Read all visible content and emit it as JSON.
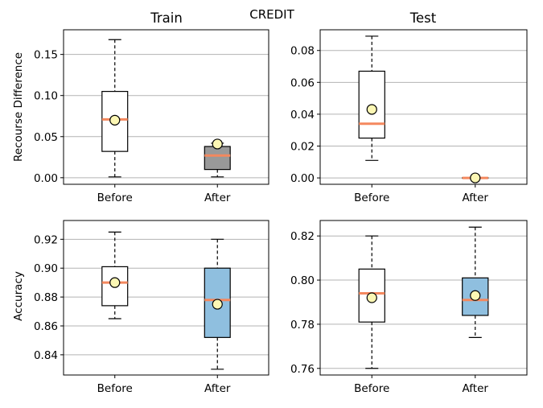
{
  "figure": {
    "suptitle": "CREDIT"
  },
  "chart_data": [
    {
      "type": "box",
      "title": "Train",
      "ylabel": "Recourse Difference",
      "categories": [
        "Before",
        "After"
      ],
      "ylim": [
        -0.008,
        0.18
      ],
      "yticks": [
        0.0,
        0.05,
        0.1,
        0.15
      ],
      "ytick_labels": [
        "0.00",
        "0.05",
        "0.10",
        "0.15"
      ],
      "grid": "y",
      "boxes": [
        {
          "category": "Before",
          "whisker_low": 0.001,
          "q1": 0.032,
          "median": 0.071,
          "q3": 0.105,
          "whisker_high": 0.168,
          "mean": 0.07,
          "fill": "#ffffff"
        },
        {
          "category": "After",
          "whisker_low": 0.001,
          "q1": 0.01,
          "median": 0.027,
          "q3": 0.038,
          "whisker_high": 0.042,
          "mean": 0.041,
          "fill": "#999999"
        }
      ]
    },
    {
      "type": "box",
      "title": "Test",
      "ylabel": "",
      "categories": [
        "Before",
        "After"
      ],
      "ylim": [
        -0.004,
        0.093
      ],
      "yticks": [
        0.0,
        0.02,
        0.04,
        0.06,
        0.08
      ],
      "ytick_labels": [
        "0.00",
        "0.02",
        "0.04",
        "0.06",
        "0.08"
      ],
      "grid": "y",
      "boxes": [
        {
          "category": "Before",
          "whisker_low": 0.011,
          "q1": 0.025,
          "median": 0.034,
          "q3": 0.067,
          "whisker_high": 0.089,
          "mean": 0.043,
          "fill": "#ffffff"
        },
        {
          "category": "After",
          "whisker_low": 0.0,
          "q1": 0.0,
          "median": 0.0,
          "q3": 0.0,
          "whisker_high": 0.0,
          "mean": 0.0,
          "fill": "#ffffff"
        }
      ]
    },
    {
      "type": "box",
      "title": "",
      "ylabel": "Accuracy",
      "categories": [
        "Before",
        "After"
      ],
      "ylim": [
        0.826,
        0.933
      ],
      "yticks": [
        0.84,
        0.86,
        0.88,
        0.9,
        0.92
      ],
      "ytick_labels": [
        "0.84",
        "0.86",
        "0.88",
        "0.90",
        "0.92"
      ],
      "grid": "y",
      "boxes": [
        {
          "category": "Before",
          "whisker_low": 0.865,
          "q1": 0.874,
          "median": 0.89,
          "q3": 0.901,
          "whisker_high": 0.925,
          "mean": 0.89,
          "fill": "#ffffff"
        },
        {
          "category": "After",
          "whisker_low": 0.83,
          "q1": 0.852,
          "median": 0.878,
          "q3": 0.9,
          "whisker_high": 0.92,
          "mean": 0.875,
          "fill": "#8fbfdf"
        }
      ]
    },
    {
      "type": "box",
      "title": "",
      "ylabel": "",
      "categories": [
        "Before",
        "After"
      ],
      "ylim": [
        0.757,
        0.827
      ],
      "yticks": [
        0.76,
        0.78,
        0.8,
        0.82
      ],
      "ytick_labels": [
        "0.76",
        "0.78",
        "0.80",
        "0.82"
      ],
      "grid": "y",
      "boxes": [
        {
          "category": "Before",
          "whisker_low": 0.76,
          "q1": 0.781,
          "median": 0.794,
          "q3": 0.805,
          "whisker_high": 0.82,
          "mean": 0.792,
          "fill": "#ffffff"
        },
        {
          "category": "After",
          "whisker_low": 0.774,
          "q1": 0.784,
          "median": 0.791,
          "q3": 0.801,
          "whisker_high": 0.824,
          "mean": 0.793,
          "fill": "#8fbfdf"
        }
      ]
    }
  ],
  "style": {
    "median_color": "#f4885e",
    "mean_marker_fill": "#fcf7b4",
    "grid_color": "#b3b3b3",
    "box_edge_color": "#000000"
  }
}
